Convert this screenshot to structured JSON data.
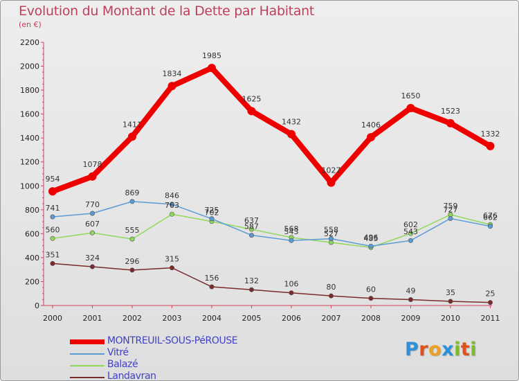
{
  "title": "Evolution du Montant de la Dette par Habitant",
  "subtitle": "(en €)",
  "logo": {
    "letters": [
      "P",
      "r",
      "o",
      "x",
      "i",
      "t",
      "i"
    ],
    "colors": [
      "#2f8fd8",
      "#e0501a",
      "#f0a020",
      "#2f8fd8",
      "#7dbb2c",
      "#e0501a",
      "#7dbb2c"
    ]
  },
  "chart_data": {
    "type": "line",
    "title": "Evolution du Montant de la Dette par Habitant",
    "subtitle": "(en €)",
    "x": [
      "2000",
      "2001",
      "2002",
      "2003",
      "2004",
      "2005",
      "2006",
      "2007",
      "2008",
      "2009",
      "2010",
      "2011"
    ],
    "ylim": [
      0,
      2200
    ],
    "yticks": [
      "0",
      "200",
      "400",
      "600",
      "800",
      "1000",
      "1200",
      "1400",
      "1600",
      "1800",
      "2000",
      "2200"
    ],
    "grid": false,
    "legend_position": "bottom-left",
    "series": [
      {
        "name": "MONTREUIL-SOUS-PéROUSE",
        "color": "#ee0000",
        "values": [
          954,
          1078,
          1411,
          1834,
          1985,
          1625,
          1432,
          1027,
          1406,
          1650,
          1523,
          1332
        ],
        "labels": [
          "954",
          "1078",
          "1411",
          "1834",
          "1985",
          "1625",
          "1432",
          "1027",
          "1406",
          "1650",
          "1523",
          "1332"
        ]
      },
      {
        "name": "Vitré",
        "color": "#5b9bd5",
        "values": [
          741,
          770,
          869,
          846,
          725,
          587,
          543,
          558,
          496,
          543,
          727,
          662
        ],
        "labels": [
          "741",
          "770",
          "869",
          "846",
          "725",
          "587",
          "543",
          "558",
          "496",
          "543",
          "727",
          "662"
        ]
      },
      {
        "name": "Balazé",
        "color": "#90d85a",
        "values": [
          560,
          607,
          555,
          763,
          702,
          637,
          568,
          527,
          485,
          602,
          759,
          676
        ],
        "labels": [
          "560",
          "607",
          "555",
          "763",
          "702",
          "637",
          "568",
          "527",
          "485",
          "602",
          "759",
          "676"
        ]
      },
      {
        "name": "Landavran",
        "color": "#7a2a2a",
        "values": [
          351,
          324,
          296,
          315,
          156,
          132,
          106,
          80,
          60,
          49,
          35,
          25
        ],
        "labels": [
          "351",
          "324",
          "296",
          "315",
          "156",
          "132",
          "106",
          "80",
          "60",
          "49",
          "35",
          "25"
        ]
      }
    ]
  }
}
